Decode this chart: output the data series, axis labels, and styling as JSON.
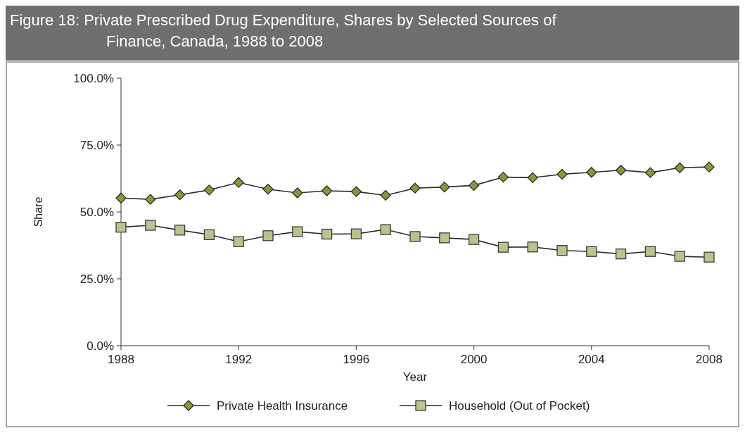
{
  "chart_data": {
    "type": "line",
    "title": "Figure 18: Private Prescribed Drug Expenditure, Shares by Selected Sources of Finance, Canada, 1988 to 2008",
    "xlabel": "Year",
    "ylabel": "Share",
    "x": [
      1988,
      1989,
      1990,
      1991,
      1992,
      1993,
      1994,
      1995,
      1996,
      1997,
      1998,
      1999,
      2000,
      2001,
      2002,
      2003,
      2004,
      2005,
      2006,
      2007,
      2008
    ],
    "xlim": [
      1988,
      2008
    ],
    "xticks": [
      1988,
      1992,
      1996,
      2000,
      2004,
      2008
    ],
    "ylim": [
      0,
      100
    ],
    "yticks": [
      {
        "value": 0,
        "label": "0.0%"
      },
      {
        "value": 25,
        "label": "25.0%"
      },
      {
        "value": 50,
        "label": "50.0%"
      },
      {
        "value": 75,
        "label": "75.0%"
      },
      {
        "value": 100,
        "label": "100.0%"
      }
    ],
    "grid": false,
    "legend": "bottom",
    "series": [
      {
        "name": "Private Health Insurance",
        "color": "#839a3a",
        "marker": "diamond",
        "values": [
          55.2,
          54.7,
          56.4,
          58.2,
          61.0,
          58.5,
          57.1,
          57.9,
          57.6,
          56.2,
          58.9,
          59.3,
          59.9,
          63.0,
          62.8,
          64.1,
          64.8,
          65.6,
          64.7,
          66.5,
          66.8
        ]
      },
      {
        "name": "Household (Out of Pocket)",
        "color": "#b8c48e",
        "marker": "square",
        "values": [
          44.3,
          45.0,
          43.2,
          41.5,
          38.9,
          41.1,
          42.6,
          41.7,
          41.8,
          43.4,
          40.8,
          40.3,
          39.7,
          36.8,
          36.9,
          35.6,
          35.2,
          34.3,
          35.2,
          33.4,
          33.1
        ]
      }
    ]
  }
}
